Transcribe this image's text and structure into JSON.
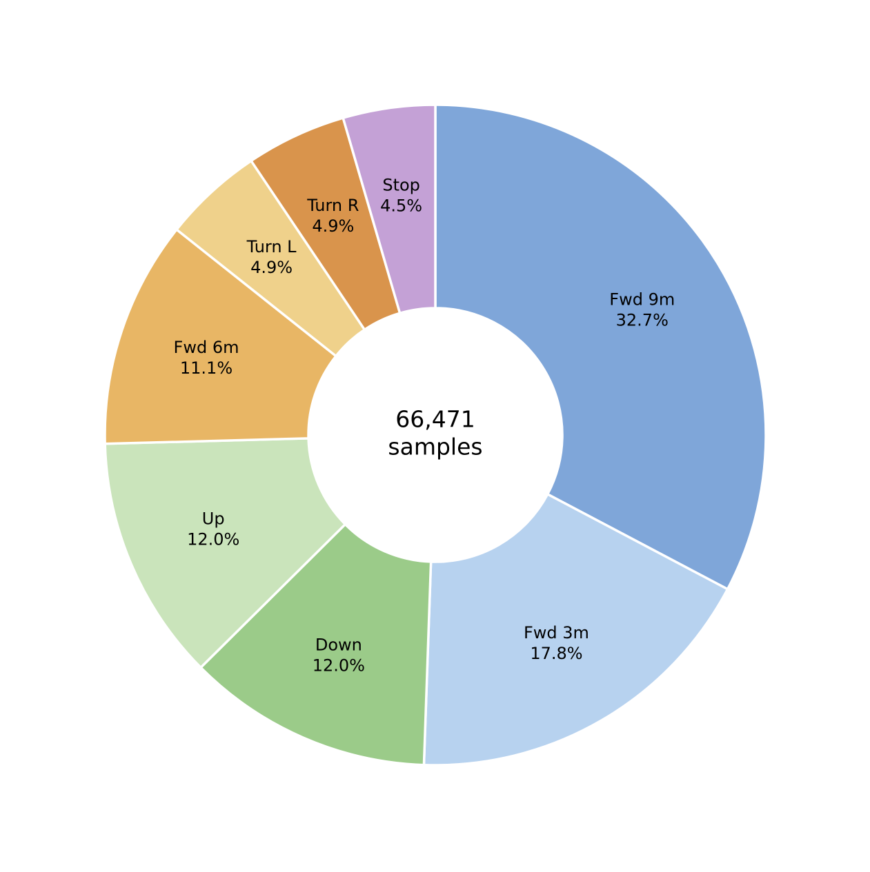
{
  "chart_data": {
    "type": "donut",
    "categories": [
      "Fwd 9m",
      "Fwd 3m",
      "Down",
      "Up",
      "Fwd 6m",
      "Turn L",
      "Turn R",
      "Stop"
    ],
    "values": [
      32.7,
      17.8,
      12.0,
      12.0,
      11.1,
      4.9,
      4.9,
      4.5
    ],
    "value_labels": [
      "32.7%",
      "17.8%",
      "12.0%",
      "12.0%",
      "11.1%",
      "4.9%",
      "4.9%",
      "4.5%"
    ],
    "colors": [
      "#7fa6d9",
      "#b7d2ef",
      "#9bcb89",
      "#cae4bb",
      "#e8b665",
      "#efd18b",
      "#d9944c",
      "#c4a1d6"
    ],
    "center_text": [
      "66,471",
      "samples"
    ]
  }
}
